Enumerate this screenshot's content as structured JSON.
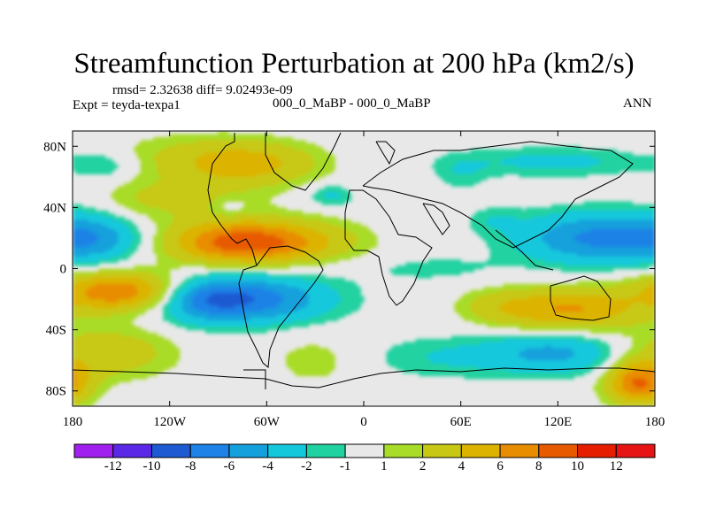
{
  "chart_data": {
    "type": "heatmap",
    "title": "Streamfunction Perturbation at 200 hPa (km2/s)",
    "stats_line": "rmsd= 2.32638 diff= 9.02493e-09",
    "experiment_label": "Expt = teyda-texpa1",
    "comparison_label": "000_0_MaBP - 000_0_MaBP",
    "period_label": "ANN",
    "xlim": [
      -180,
      180
    ],
    "ylim": [
      -90,
      90
    ],
    "x_ticks": [
      {
        "value": -180,
        "label": "180"
      },
      {
        "value": -120,
        "label": "120W"
      },
      {
        "value": -60,
        "label": "60W"
      },
      {
        "value": 0,
        "label": "0"
      },
      {
        "value": 60,
        "label": "60E"
      },
      {
        "value": 120,
        "label": "120E"
      },
      {
        "value": 180,
        "label": "180"
      }
    ],
    "y_ticks": [
      {
        "value": 80,
        "label": "80N"
      },
      {
        "value": 40,
        "label": "40N"
      },
      {
        "value": 0,
        "label": "0"
      },
      {
        "value": -40,
        "label": "40S"
      },
      {
        "value": -80,
        "label": "80S"
      }
    ],
    "colorbar": {
      "labels": [
        "-12",
        "-10",
        "-8",
        "-6",
        "-4",
        "-2",
        "-1",
        "1",
        "2",
        "4",
        "6",
        "8",
        "10",
        "12"
      ],
      "colors": [
        "#a020f0",
        "#5a28e6",
        "#1e5ad2",
        "#1e82e6",
        "#14a0dc",
        "#14c8dc",
        "#20d2a0",
        "#e8e8e8",
        "#a8dc28",
        "#c8c814",
        "#dcb400",
        "#e88c00",
        "#e85a00",
        "#e61e00",
        "#e61414"
      ]
    },
    "anomalies": [
      {
        "lon": -150,
        "lat": -15,
        "value": 8,
        "spread_lon": 28,
        "spread_lat": 9
      },
      {
        "lon": -160,
        "lat": -55,
        "value": 3.5,
        "spread_lon": 30,
        "spread_lat": 12
      },
      {
        "lon": -165,
        "lat": 20,
        "value": -4,
        "spread_lon": 20,
        "spread_lat": 11
      },
      {
        "lon": -80,
        "lat": 17,
        "value": 8,
        "spread_lon": 30,
        "spread_lat": 10
      },
      {
        "lon": -40,
        "lat": 18,
        "value": 3.5,
        "spread_lon": 30,
        "spread_lat": 10
      },
      {
        "lon": -70,
        "lat": -20,
        "value": -7,
        "spread_lon": 35,
        "spread_lat": 11
      },
      {
        "lon": -100,
        "lat": -20,
        "value": -4,
        "spread_lon": 20,
        "spread_lat": 10
      },
      {
        "lon": -105,
        "lat": 73,
        "value": 2,
        "spread_lon": 40,
        "spread_lat": 11
      },
      {
        "lon": -70,
        "lat": 68,
        "value": 4,
        "spread_lon": 30,
        "spread_lat": 10
      },
      {
        "lon": -100,
        "lat": 45,
        "value": 2,
        "spread_lon": 25,
        "spread_lat": 10
      },
      {
        "lon": -140,
        "lat": 45,
        "value": 1.6,
        "spread_lon": 18,
        "spread_lat": 10
      },
      {
        "lon": -160,
        "lat": 67,
        "value": -2,
        "spread_lon": 14,
        "spread_lat": 7
      },
      {
        "lon": -83,
        "lat": 40,
        "value": -1.5,
        "spread_lon": 8,
        "spread_lat": 5
      },
      {
        "lon": -20,
        "lat": 48,
        "value": -2.5,
        "spread_lon": 10,
        "spread_lat": 5
      },
      {
        "lon": 60,
        "lat": 62,
        "value": -1.5,
        "spread_lon": 12,
        "spread_lat": 8
      },
      {
        "lon": 80,
        "lat": 32,
        "value": -1.5,
        "spread_lon": 12,
        "spread_lat": 6
      },
      {
        "lon": 145,
        "lat": 20,
        "value": -6.5,
        "spread_lon": 35,
        "spread_lat": 12
      },
      {
        "lon": 118,
        "lat": 70,
        "value": -2.5,
        "spread_lon": 45,
        "spread_lat": 7
      },
      {
        "lon": 130,
        "lat": -27,
        "value": 6,
        "spread_lon": 28,
        "spread_lat": 10
      },
      {
        "lon": 85,
        "lat": -25,
        "value": 2.5,
        "spread_lon": 20,
        "spread_lat": 9
      },
      {
        "lon": 120,
        "lat": -55,
        "value": -4.5,
        "spread_lon": 30,
        "spread_lat": 10
      },
      {
        "lon": 50,
        "lat": -58,
        "value": -2,
        "spread_lon": 35,
        "spread_lat": 10
      },
      {
        "lon": 40,
        "lat": 0,
        "value": -1.3,
        "spread_lon": 35,
        "spread_lat": 7
      },
      {
        "lon": 170,
        "lat": -75,
        "value": 8,
        "spread_lon": 14,
        "spread_lat": 10
      },
      {
        "lon": -30,
        "lat": -60,
        "value": 1.6,
        "spread_lon": 20,
        "spread_lat": 12
      }
    ]
  }
}
